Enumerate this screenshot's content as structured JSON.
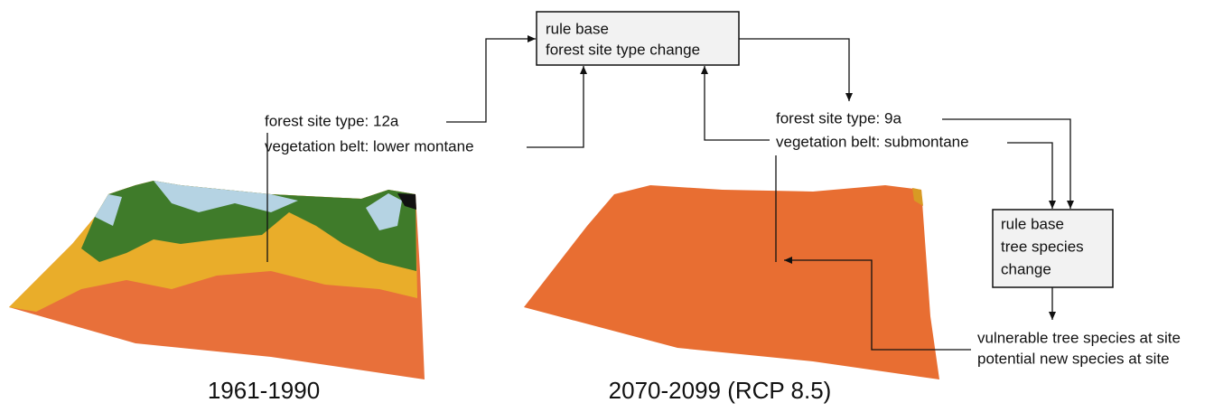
{
  "rule_base_forest": {
    "lines": [
      "rule base",
      "forest site type change"
    ]
  },
  "present_labels": [
    "forest site type: 12a",
    "vegetation belt: lower montane"
  ],
  "future_labels": [
    "forest site type: 9a",
    "vegetation belt: submontane"
  ],
  "rule_base_species": {
    "lines": [
      "rule base",
      "tree species",
      "change"
    ]
  },
  "output_labels": [
    "vulnerable tree species at site",
    "potential new species at site"
  ],
  "captions": [
    "1961-1990",
    "2070-2099 (RCP 8.5)"
  ]
}
